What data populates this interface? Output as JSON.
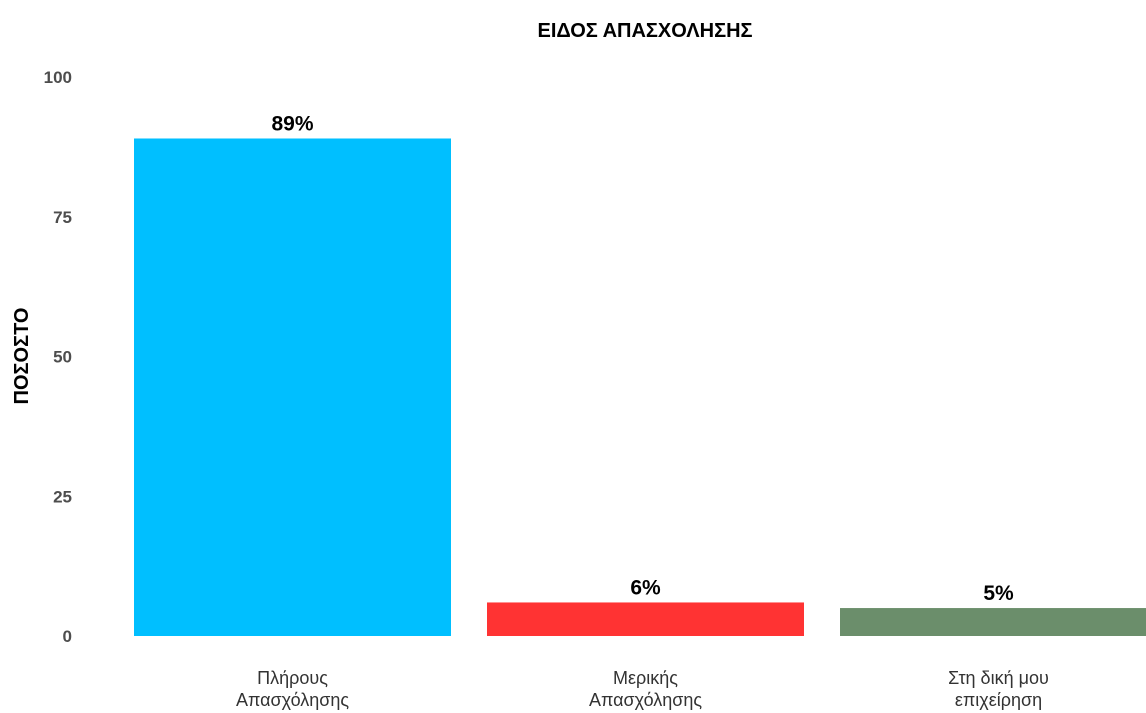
{
  "chart_data": {
    "type": "bar",
    "title": "ΕΙΔΟΣ ΑΠΑΣΧΟΛΗΣΗΣ",
    "xlabel": "",
    "ylabel": "ΠΟΣΟΣΤΟ",
    "ylim": [
      0,
      100
    ],
    "yticks": [
      "0",
      "25",
      "50",
      "75",
      "100"
    ],
    "grid": false,
    "categories": [
      [
        "Πλήρους",
        "Απασχόλησης"
      ],
      [
        "Μερικής",
        "Απασχόλησης"
      ],
      [
        "Στη δική μου",
        "επιχείρηση"
      ]
    ],
    "values": [
      89,
      6,
      5
    ],
    "data_labels": [
      "89%",
      "6%",
      "5%"
    ],
    "colors": [
      "#00bfff",
      "#ff3333",
      "#6b8e6b"
    ]
  }
}
